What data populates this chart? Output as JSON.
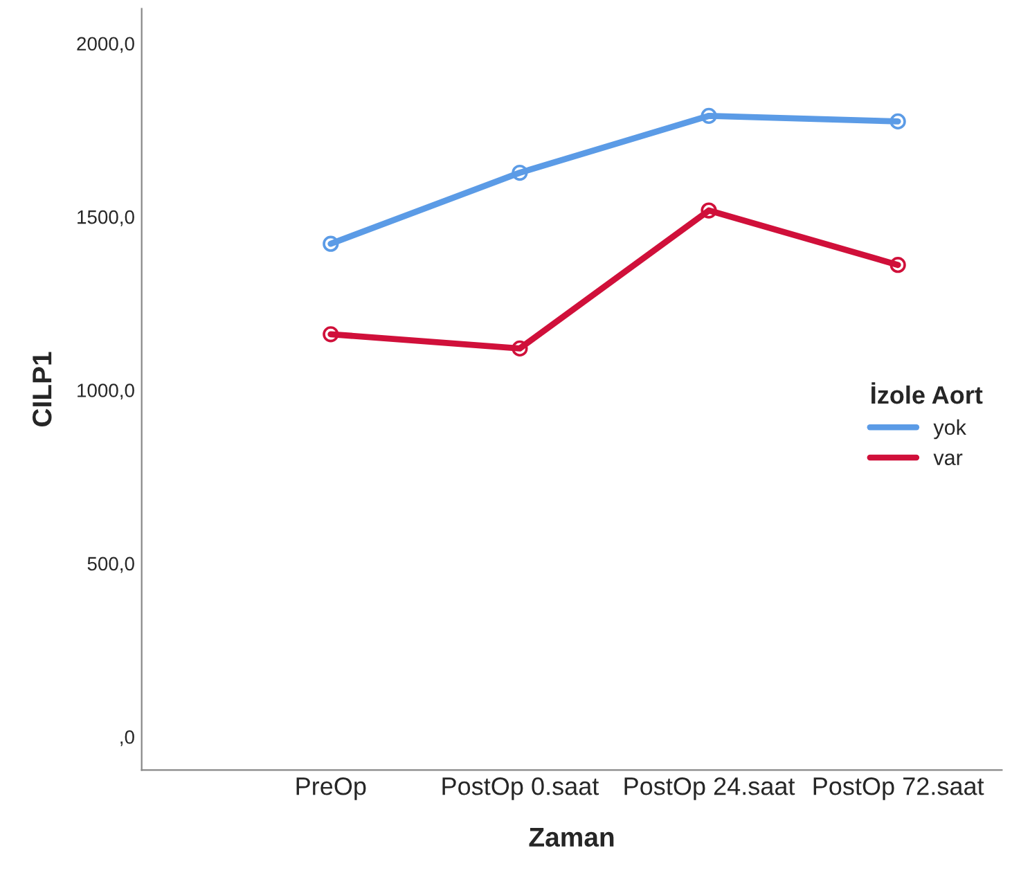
{
  "chart_data": {
    "type": "line",
    "xlabel": "Zaman",
    "ylabel": "CILP1",
    "legend_title": "İzole Aort",
    "categories": [
      "PreOp",
      "PostOp 0.saat",
      "PostOp 24.saat",
      "PostOp 72.saat"
    ],
    "series": [
      {
        "name": "yok",
        "color": "#5b9be6",
        "values": [
          1422,
          1627,
          1791,
          1775
        ]
      },
      {
        "name": "var",
        "color": "#d0103a",
        "values": [
          1161,
          1120,
          1518,
          1361
        ]
      }
    ],
    "ylim": [
      -96,
      2100
    ],
    "yticks": [
      {
        "value": 0,
        "label": ",0"
      },
      {
        "value": 500,
        "label": "500,0"
      },
      {
        "value": 1000,
        "label": "1000,0"
      },
      {
        "value": 1500,
        "label": "1500,0"
      },
      {
        "value": 2000,
        "label": "2000,0"
      }
    ],
    "marker": "circle",
    "line_style": "solid",
    "legend": "right",
    "grid": false
  }
}
